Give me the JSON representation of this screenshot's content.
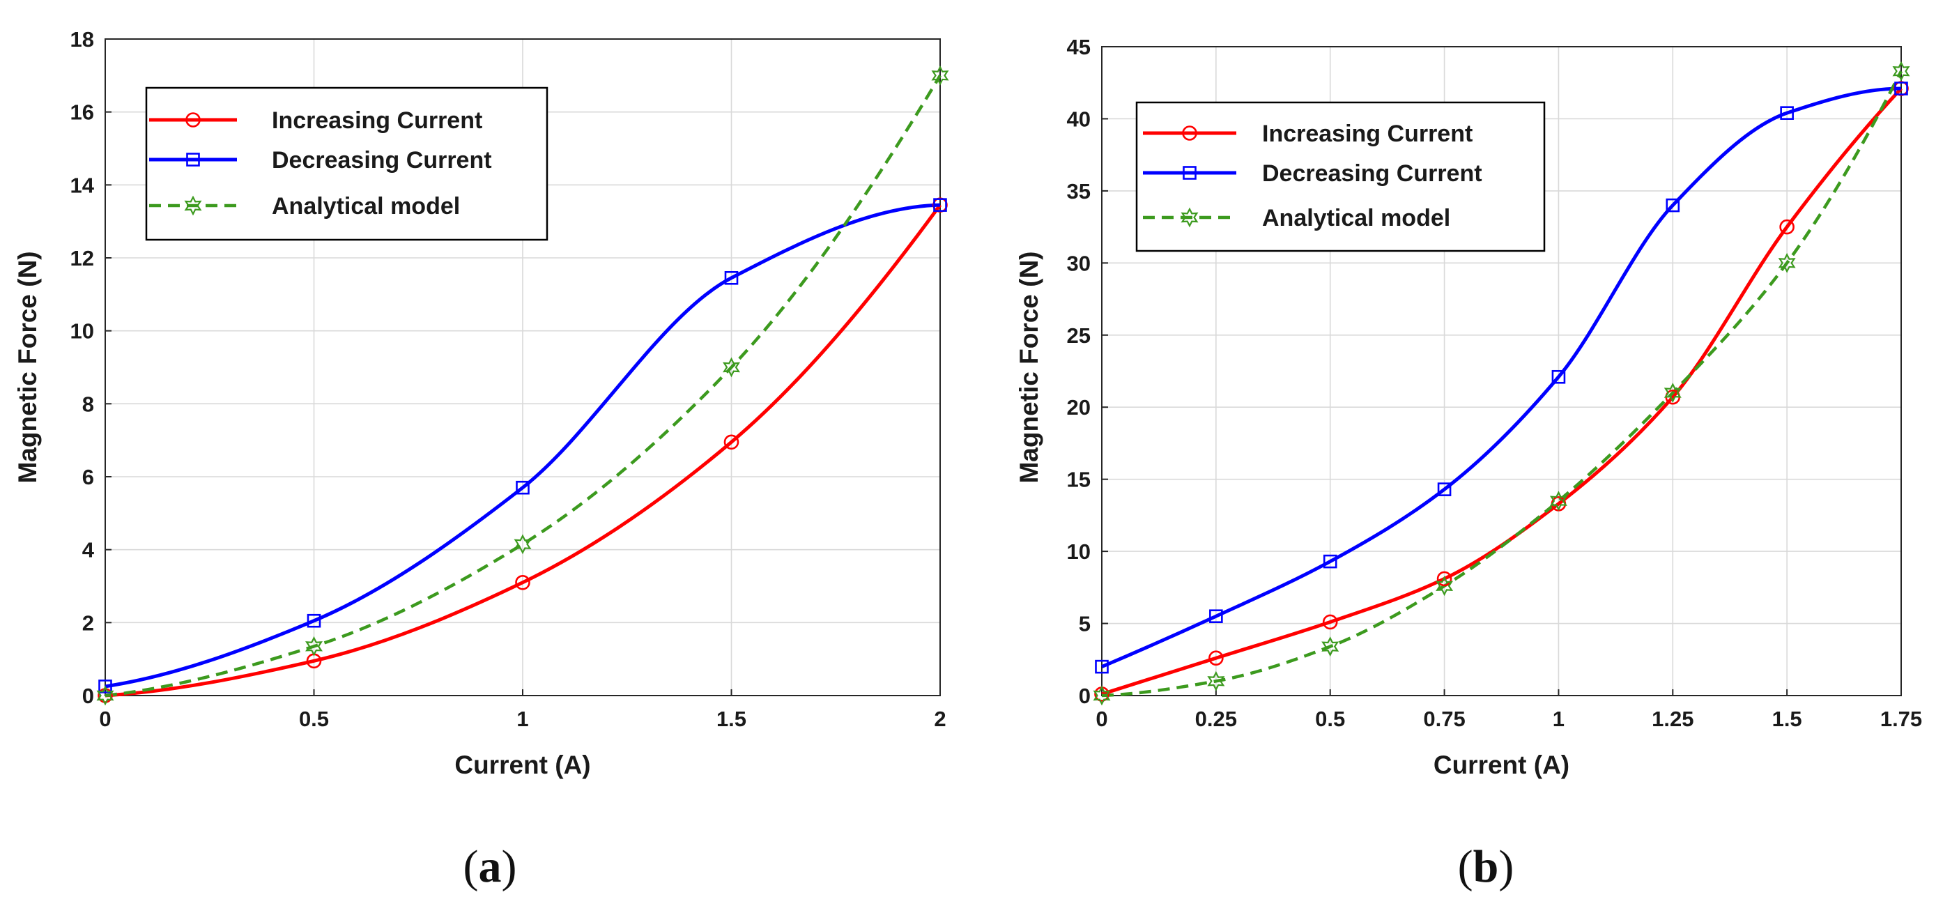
{
  "chart_data": [
    {
      "type": "line",
      "panel": "a",
      "caption_letter": "a",
      "xlabel": "Current (A)",
      "ylabel": "Magnetic Force (N)",
      "xlim": [
        0,
        2
      ],
      "ylim": [
        0,
        18
      ],
      "xticks": [
        0,
        0.5,
        1,
        1.5,
        2
      ],
      "xtick_labels": [
        "0",
        "0.5",
        "1",
        "1.5",
        "2"
      ],
      "yticks": [
        0,
        2,
        4,
        6,
        8,
        10,
        12,
        14,
        16,
        18
      ],
      "ytick_labels": [
        "0",
        "2",
        "4",
        "6",
        "8",
        "10",
        "12",
        "14",
        "16",
        "18"
      ],
      "grid": true,
      "legend_position": "top-left",
      "x": [
        0,
        0.5,
        1,
        1.5,
        2
      ],
      "series": [
        {
          "name": "Increasing Current",
          "color": "#ff0000",
          "marker": "circle",
          "dash": false,
          "values": [
            0,
            0.95,
            3.1,
            6.95,
            13.45
          ]
        },
        {
          "name": "Decreasing Current",
          "color": "#0000ff",
          "marker": "square",
          "dash": false,
          "values": [
            0.25,
            2.05,
            5.7,
            11.45,
            13.45
          ]
        },
        {
          "name": "Analytical model",
          "color": "#3c9a1e",
          "marker": "hexagram",
          "dash": true,
          "values": [
            0,
            1.35,
            4.15,
            9.0,
            17.0
          ]
        }
      ]
    },
    {
      "type": "line",
      "panel": "b",
      "caption_letter": "b",
      "xlabel": "Current (A)",
      "ylabel": "Magnetic Force (N)",
      "xlim": [
        0,
        1.75
      ],
      "ylim": [
        0,
        45
      ],
      "xticks": [
        0,
        0.25,
        0.5,
        0.75,
        1,
        1.25,
        1.5,
        1.75
      ],
      "xtick_labels": [
        "0",
        "0.25",
        "0.5",
        "0.75",
        "1",
        "1.25",
        "1.5",
        "1.75"
      ],
      "yticks": [
        0,
        5,
        10,
        15,
        20,
        25,
        30,
        35,
        40,
        45
      ],
      "ytick_labels": [
        "0",
        "5",
        "10",
        "15",
        "20",
        "25",
        "30",
        "35",
        "40",
        "45"
      ],
      "grid": true,
      "legend_position": "top-left",
      "x": [
        0,
        0.25,
        0.5,
        0.75,
        1,
        1.25,
        1.5,
        1.75
      ],
      "series": [
        {
          "name": "Increasing Current",
          "color": "#ff0000",
          "marker": "circle",
          "dash": false,
          "values": [
            0.1,
            2.6,
            5.1,
            8.1,
            13.3,
            20.7,
            32.5,
            42.1
          ]
        },
        {
          "name": "Decreasing Current",
          "color": "#0000ff",
          "marker": "square",
          "dash": false,
          "values": [
            2.0,
            5.5,
            9.3,
            14.3,
            22.1,
            34.0,
            40.4,
            42.1
          ]
        },
        {
          "name": "Analytical model",
          "color": "#3c9a1e",
          "marker": "hexagram",
          "dash": true,
          "values": [
            0,
            1.0,
            3.4,
            7.6,
            13.5,
            21.0,
            30.0,
            43.3
          ]
        }
      ]
    }
  ]
}
